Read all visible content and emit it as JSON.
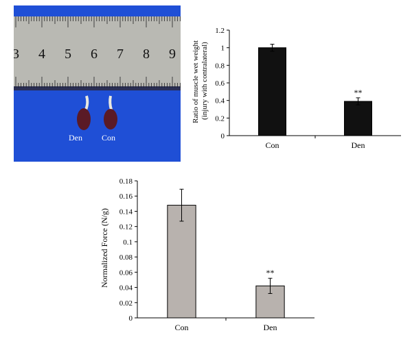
{
  "photo": {
    "ruler_numbers": [
      "3",
      "4",
      "5",
      "6",
      "7",
      "8",
      "9"
    ],
    "sample_labels": [
      "Den",
      "Con"
    ],
    "colors": {
      "cloth": "#1f4fd6",
      "ruler": "#b9b9b3",
      "muscle": "#5a1a26",
      "tendon": "#e8e8e0"
    }
  },
  "chart_data": [
    {
      "type": "bar",
      "categories": [
        "Con",
        "Den"
      ],
      "values": [
        1.0,
        0.39
      ],
      "errors": [
        0.04,
        0.04
      ],
      "significance": [
        "",
        "**"
      ],
      "title": "",
      "xlabel": "",
      "ylabel": "Ratio of muscle wet weight (injury with contralateral)",
      "ylabel_lines": [
        "Ratio of muscle wet weight",
        "(injury with contralateral)"
      ],
      "ylim": [
        0,
        1.2
      ],
      "yticks": [
        "0",
        "0.2",
        "0.4",
        "0.6",
        "0.8",
        "1",
        "1.2"
      ],
      "bar_color": "#111111",
      "grid": false
    },
    {
      "type": "bar",
      "categories": [
        "Con",
        "Den"
      ],
      "values": [
        0.148,
        0.042
      ],
      "errors": [
        0.021,
        0.01
      ],
      "significance": [
        "",
        "**"
      ],
      "title": "",
      "xlabel": "",
      "ylabel": "Normalized Force (N/g)",
      "ylim": [
        0,
        0.18
      ],
      "yticks": [
        "0",
        "0.02",
        "0.04",
        "0.06",
        "0.08",
        "0.1",
        "0.12",
        "0.14",
        "0.16",
        "0.18"
      ],
      "bar_color": "#b8b2ae",
      "grid": false
    }
  ]
}
